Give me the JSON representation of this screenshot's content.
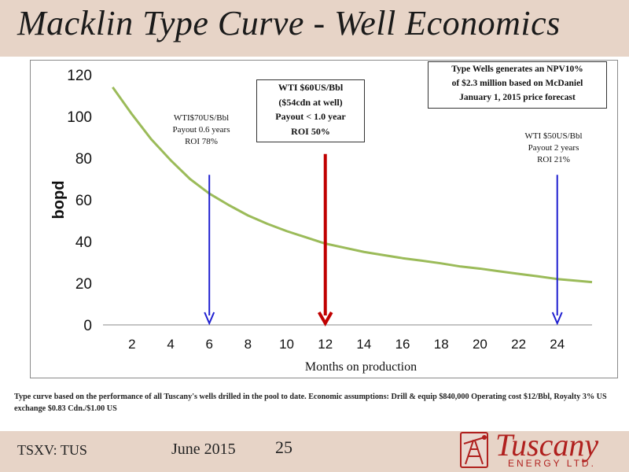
{
  "slide": {
    "title": "Macklin Type Curve - Well Economics",
    "footnote": "Type curve based on the performance of all Tuscany's wells drilled in the pool to date. Economic assumptions: Drill & equip $840,000 Operating cost $12/Bbl, Royalty 3% US exchange $0.83 Cdn./$1.00 US",
    "ticker": "TSXV: TUS",
    "date": "June 2015",
    "page_number": "25"
  },
  "logo": {
    "name": "Tuscany",
    "sub": "ENERGY LTD."
  },
  "annotations": {
    "npv_box": [
      "Type Wells generates an NPV10%",
      "of $2.3 million based on McDaniel",
      "January 1,  2015 price forecast"
    ],
    "wti60_box": [
      "WTI $60US/Bbl",
      "($54cdn at well)",
      "Payout < 1.0 year",
      "ROI 50%"
    ],
    "wti70": [
      "WTI$70US/Bbl",
      "Payout 0.6 years",
      "ROI  78%"
    ],
    "wti50": [
      "WTI $50US/Bbl",
      "Payout 2 years",
      "ROI 21%"
    ]
  },
  "colors": {
    "curve": "#9bbb59",
    "blue_arrow": "#1f1fd0",
    "red_arrow": "#c00000",
    "band": "#e7d4c7",
    "logo": "#b0201e"
  },
  "chart_data": {
    "type": "line",
    "xlabel": "Months on production",
    "ylabel": "bopd",
    "xticks": [
      2,
      4,
      6,
      8,
      10,
      12,
      14,
      16,
      18,
      20,
      22,
      24
    ],
    "xlim": [
      0.5,
      25.8
    ],
    "ylim": [
      0,
      120
    ],
    "yticks": [
      0,
      20,
      40,
      60,
      80,
      100,
      120
    ],
    "grid": false,
    "series": [
      {
        "x": [
          1,
          2,
          3,
          4,
          5,
          6,
          7,
          8,
          9,
          10,
          11,
          12,
          13,
          14,
          15,
          16,
          17,
          18,
          19,
          20,
          21,
          22,
          23,
          24,
          25,
          25.8
        ],
        "values": [
          114,
          101,
          89,
          79,
          70,
          63,
          57.5,
          52.5,
          48.5,
          45,
          42,
          39,
          37,
          35,
          33.5,
          32,
          30.8,
          29.5,
          28,
          27,
          25.7,
          24.5,
          23.3,
          22,
          21.2,
          20.5
        ]
      }
    ],
    "arrows": [
      {
        "x": 6,
        "y_top": 72,
        "color": "blue"
      },
      {
        "x": 12,
        "y_top": 82,
        "color": "red"
      },
      {
        "x": 24,
        "y_top": 72,
        "color": "blue"
      }
    ]
  }
}
